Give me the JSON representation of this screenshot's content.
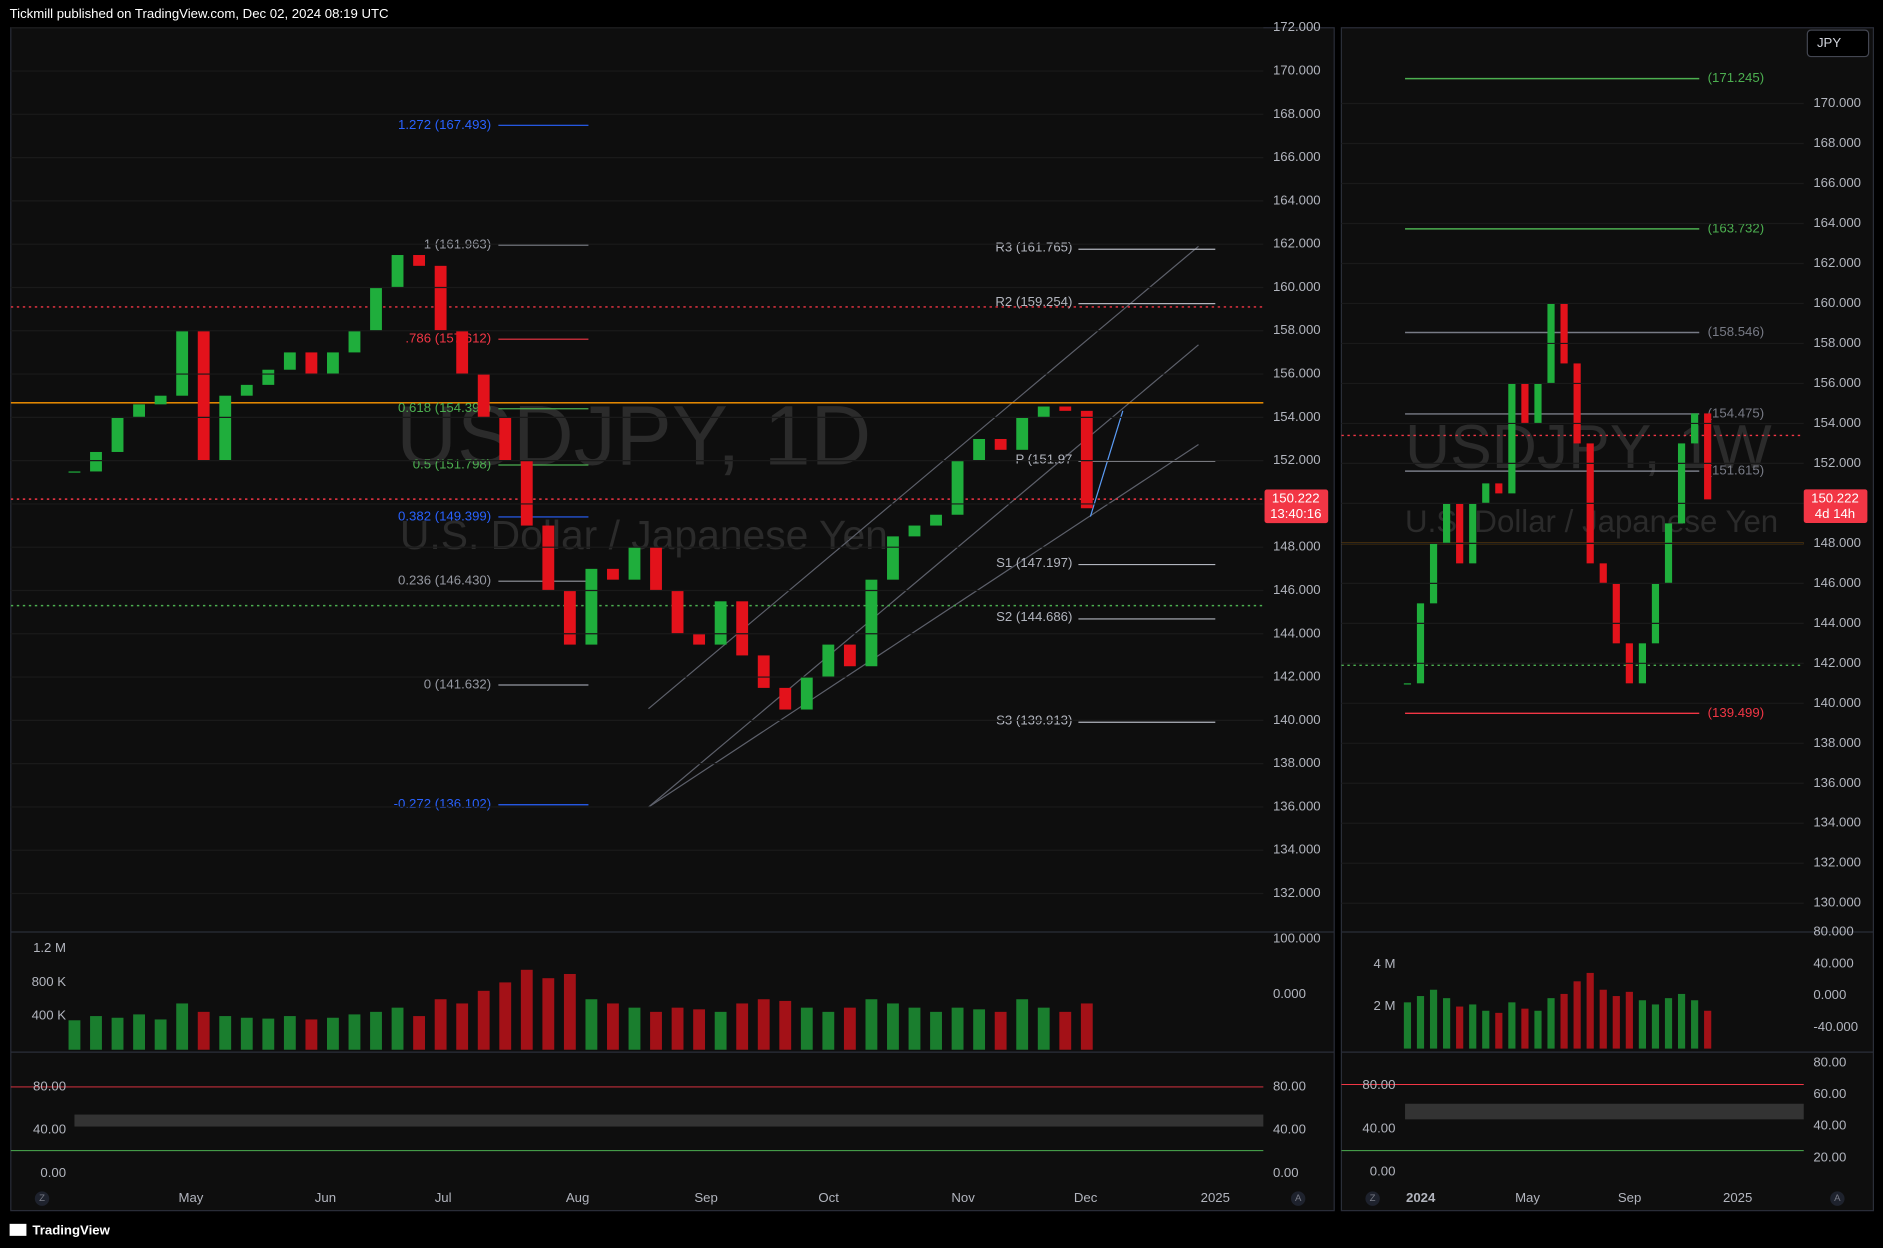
{
  "header": {
    "publisher": "Tickmill published on TradingView.com, Dec 02, 2024 08:19 UTC"
  },
  "footer": {
    "brand": "TradingView"
  },
  "currency_button": "JPY",
  "scale_buttons": {
    "auto_left": "Z",
    "auto_right": "A"
  },
  "left_chart": {
    "type": "candlestick",
    "symbol": "USDJPY, 1D",
    "description": "U.S. Dollar / Japanese Yen",
    "up_color": "#1fae3c",
    "down_color": "#e3121b",
    "ylim": [
      130.22,
      172
    ],
    "yticks": [
      {
        "value": 172,
        "label": "172.000"
      },
      {
        "value": 170,
        "label": "170.000"
      },
      {
        "value": 168,
        "label": "168.000"
      },
      {
        "value": 166,
        "label": "166.000"
      },
      {
        "value": 164,
        "label": "164.000"
      },
      {
        "value": 162,
        "label": "162.000"
      },
      {
        "value": 160,
        "label": "160.000"
      },
      {
        "value": 158,
        "label": "158.000"
      },
      {
        "value": 156,
        "label": "156.000"
      },
      {
        "value": 154,
        "label": "154.000"
      },
      {
        "value": 152,
        "label": "152.000"
      },
      {
        "value": 150,
        "label": "150.000"
      },
      {
        "value": 148,
        "label": "148.000"
      },
      {
        "value": 146,
        "label": "146.000"
      },
      {
        "value": 144,
        "label": "144.000"
      },
      {
        "value": 142,
        "label": "142.000"
      },
      {
        "value": 140,
        "label": "140.000"
      },
      {
        "value": 138,
        "label": "138.000"
      },
      {
        "value": 136,
        "label": "136.000"
      },
      {
        "value": 134,
        "label": "134.000"
      },
      {
        "value": 132,
        "label": "132.000"
      }
    ],
    "closes": [
      151.5,
      152.4,
      154,
      154.6,
      155,
      158,
      152,
      155,
      155.5,
      156.2,
      157,
      156,
      157,
      158,
      160,
      161.5,
      161,
      158,
      156,
      154,
      152,
      149,
      146,
      143.5,
      147,
      146.5,
      148,
      146,
      144,
      143.5,
      145.5,
      143,
      141.5,
      140.5,
      142,
      143.5,
      142.5,
      146.5,
      148.5,
      149,
      149.5,
      152,
      153,
      152.5,
      154,
      154.5,
      154.3,
      149.8
    ],
    "volume": {
      "ylim": [
        -0.014,
        1.37
      ],
      "values": [
        0.35,
        0.4,
        0.38,
        0.42,
        0.36,
        0.55,
        0.45,
        0.4,
        0.38,
        0.37,
        0.4,
        0.36,
        0.38,
        0.42,
        0.45,
        0.5,
        0.4,
        0.6,
        0.55,
        0.7,
        0.8,
        0.95,
        0.85,
        0.9,
        0.6,
        0.55,
        0.5,
        0.45,
        0.5,
        0.48,
        0.45,
        0.55,
        0.6,
        0.58,
        0.5,
        0.45,
        0.5,
        0.6,
        0.55,
        0.5,
        0.45,
        0.5,
        0.48,
        0.45,
        0.6,
        0.5,
        0.45,
        0.55
      ],
      "yticks": [
        {
          "value": 1.2,
          "label": "1.2 M"
        },
        {
          "value": 0.8,
          "label": "800 K"
        },
        {
          "value": 0.4,
          "label": "400 K"
        }
      ]
    },
    "oscillator": {
      "ylim": [
        -102.2,
        108.7
      ],
      "yticks": [
        {
          "value": 100,
          "label": "100.000"
        },
        {
          "value": 0,
          "label": "0.000"
        }
      ]
    },
    "stochastic": {
      "ylim": [
        -14.4,
        110
      ],
      "yticks": [
        {
          "value": 80,
          "label": "80.00"
        },
        {
          "value": 40,
          "label": "40.00"
        },
        {
          "value": 0,
          "label": "0.00"
        }
      ]
    },
    "last_price": {
      "value": 150.222,
      "label": "150.222",
      "countdown": "13:40:16"
    },
    "lines": [
      {
        "value": 154.67,
        "color": "#ff9800",
        "style": "solid"
      },
      {
        "value": 159.1,
        "color": "#f23645",
        "style": "dotted"
      },
      {
        "value": 150.222,
        "color": "#f23645",
        "style": "dotted"
      },
      {
        "value": 145.3,
        "color": "#4caf50",
        "style": "dotted"
      }
    ],
    "fib_levels": [
      {
        "label": "1.272 (167.493)",
        "value": 167.493,
        "color": "#2962ff"
      },
      {
        "label": "1 (161.963)",
        "value": 161.963,
        "color": "#9598a1"
      },
      {
        "label": ".786 (157.612)",
        "value": 157.612,
        "color": "#f23645"
      },
      {
        "label": "0.618 (154.397)",
        "value": 154.397,
        "color": "#4caf50"
      },
      {
        "label": "0.5 (151.798)",
        "value": 151.798,
        "color": "#4caf50"
      },
      {
        "label": "0.382 (149.399)",
        "value": 149.399,
        "color": "#2962ff"
      },
      {
        "label": "0.236 (146.430)",
        "value": 146.43,
        "color": "#9598a1"
      },
      {
        "label": "0 (141.632)",
        "value": 141.632,
        "color": "#9598a1"
      },
      {
        "label": "-0.272 (136.102)",
        "value": 136.102,
        "color": "#2962ff"
      }
    ],
    "pivots": [
      {
        "label": "R3 (161.765)",
        "value": 161.765
      },
      {
        "label": "R2 (159.254)",
        "value": 159.254
      },
      {
        "label": "P (151.97",
        "value": 151.97
      },
      {
        "label": "S1 (147.197)",
        "value": 147.197
      },
      {
        "label": "S2 (144.686)",
        "value": 144.686
      },
      {
        "label": "S3 (139.913)",
        "value": 139.913
      }
    ],
    "time_labels": [
      "May",
      "Jun",
      "Jul",
      "Aug",
      "Sep",
      "Oct",
      "Nov",
      "Dec",
      "2025"
    ]
  },
  "right_chart": {
    "type": "candlestick",
    "symbol": "USDJPY, 1W",
    "description": "U.S. Dollar / Japanese Yen",
    "up_color": "#1fae3c",
    "down_color": "#e3121b",
    "ylim": [
      128.56,
      173.79
    ],
    "yticks": [
      {
        "value": 170,
        "label": "170.000"
      },
      {
        "value": 168,
        "label": "168.000"
      },
      {
        "value": 166,
        "label": "166.000"
      },
      {
        "value": 164,
        "label": "164.000"
      },
      {
        "value": 162,
        "label": "162.000"
      },
      {
        "value": 160,
        "label": "160.000"
      },
      {
        "value": 158,
        "label": "158.000"
      },
      {
        "value": 156,
        "label": "156.000"
      },
      {
        "value": 154,
        "label": "154.000"
      },
      {
        "value": 152,
        "label": "152.000"
      },
      {
        "value": 150,
        "label": "150.000"
      },
      {
        "value": 148,
        "label": "148.000"
      },
      {
        "value": 146,
        "label": "146.000"
      },
      {
        "value": 144,
        "label": "144.000"
      },
      {
        "value": 142,
        "label": "142.000"
      },
      {
        "value": 140,
        "label": "140.000"
      },
      {
        "value": 138,
        "label": "138.000"
      },
      {
        "value": 136,
        "label": "136.000"
      },
      {
        "value": 134,
        "label": "134.000"
      },
      {
        "value": 132,
        "label": "132.000"
      },
      {
        "value": 130,
        "label": "130.000"
      }
    ],
    "closes": [
      141,
      145,
      148,
      150,
      147,
      150,
      151,
      150.5,
      156,
      154,
      156,
      160,
      157,
      153,
      147,
      146,
      143,
      141,
      143,
      146,
      149,
      153,
      154.5,
      150.2
    ],
    "volume": {
      "ylim": [
        -0.11,
        5.43
      ],
      "values": [
        2.2,
        2.5,
        2.8,
        2.4,
        2,
        2.1,
        1.8,
        1.7,
        2.2,
        1.9,
        1.8,
        2.4,
        2.6,
        3.2,
        3.6,
        2.8,
        2.5,
        2.7,
        2.3,
        2.1,
        2.4,
        2.6,
        2.3,
        1.8
      ],
      "yticks": [
        {
          "value": 4,
          "label": "4 M"
        },
        {
          "value": 2,
          "label": "2 M"
        }
      ]
    },
    "oscillator": {
      "ylim": [
        -69.4,
        77
      ],
      "yticks": [
        {
          "value": 80,
          "label": "80.000"
        },
        {
          "value": 40,
          "label": "40.000"
        },
        {
          "value": 0,
          "label": "0.000"
        },
        {
          "value": -40,
          "label": "-40.000"
        }
      ]
    },
    "stochastic": {
      "ylim": [
        0.25,
        85.3
      ],
      "yticks": [
        {
          "value": 80,
          "label": "80.00"
        },
        {
          "value": 60,
          "label": "60.00"
        },
        {
          "value": 40,
          "label": "40.00"
        },
        {
          "value": 20,
          "label": "20.00"
        }
      ],
      "y2lim": [
        -15.6,
        108.9
      ],
      "y2ticks": [
        {
          "value": 80,
          "label": "80.00"
        },
        {
          "value": 40,
          "label": "40.00"
        },
        {
          "value": 0,
          "label": "0.00"
        }
      ]
    },
    "last_price": {
      "value": 150.222,
      "label": "150.222",
      "countdown": "4d 14h"
    },
    "lines": [
      {
        "value": 148,
        "color": "#ff9800",
        "style": "solid"
      },
      {
        "value": 153.4,
        "color": "#f23645",
        "style": "dotted"
      },
      {
        "value": 141.9,
        "color": "#4caf50",
        "style": "dotted"
      }
    ],
    "levels": [
      {
        "label": "(171.245)",
        "value": 171.245,
        "color": "#4caf50"
      },
      {
        "label": "(163.732)",
        "value": 163.732,
        "color": "#4caf50"
      },
      {
        "label": "(158.546)",
        "value": 158.546,
        "color": "#787b86"
      },
      {
        "label": "(154.475)",
        "value": 154.475,
        "color": "#787b86"
      },
      {
        "label": "(151.615)",
        "value": 151.615,
        "color": "#787b86"
      },
      {
        "label": "(139.499)",
        "value": 139.499,
        "color": "#f23645"
      }
    ],
    "time_labels": [
      "2024",
      "May",
      "Sep",
      "2025"
    ]
  }
}
